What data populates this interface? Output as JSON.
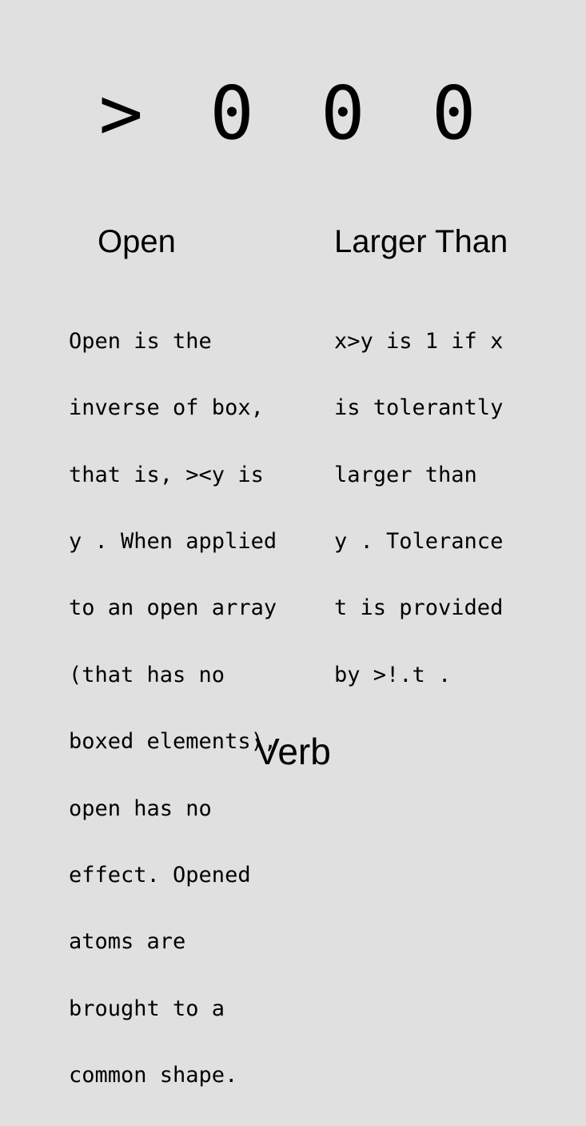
{
  "card": {
    "glyph": "> 0 0 0",
    "monad": {
      "title": "Open",
      "lines": [
        "Open is the",
        "inverse of box,",
        "that is, ><y is",
        "y . When applied",
        "to an open array",
        "(that has no",
        "boxed elements),",
        "open has no",
        "effect. Opened",
        "atoms are",
        "brought to a",
        "common shape."
      ]
    },
    "dyad": {
      "title": "Larger Than",
      "lines": [
        "x>y is 1 if x",
        "is tolerantly",
        "larger than",
        "y . Tolerance",
        "t is provided",
        "by >!.t ."
      ]
    },
    "part_of_speech": "Verb"
  }
}
